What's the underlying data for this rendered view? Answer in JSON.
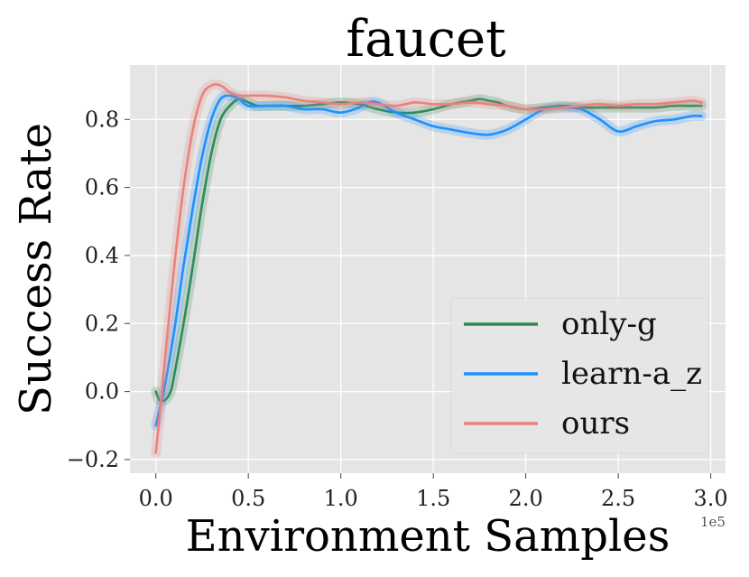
{
  "chart_data": {
    "type": "line",
    "title": "faucet",
    "xlabel": "Environment Samples",
    "ylabel": "Success Rate",
    "x_exponent_label": "1e5",
    "xlim": [
      -0.14,
      3.08
    ],
    "ylim": [
      -0.24,
      0.96
    ],
    "xticks": [
      0.0,
      0.5,
      1.0,
      1.5,
      2.0,
      2.5,
      3.0
    ],
    "xtick_labels": [
      "0.0",
      "0.5",
      "1.0",
      "1.5",
      "2.0",
      "2.5",
      "3.0"
    ],
    "yticks": [
      -0.2,
      0.0,
      0.2,
      0.4,
      0.6,
      0.8
    ],
    "ytick_labels": [
      "−0.2",
      "0.0",
      "0.2",
      "0.4",
      "0.6",
      "0.8"
    ],
    "grid": true,
    "legend_position": "lower-right",
    "series": [
      {
        "name": "only-g",
        "color": "#2e8b57",
        "x": [
          0.0,
          0.02,
          0.05,
          0.08,
          0.1,
          0.15,
          0.2,
          0.25,
          0.3,
          0.35,
          0.4,
          0.45,
          0.5,
          0.55,
          0.6,
          0.7,
          0.8,
          0.9,
          1.0,
          1.1,
          1.2,
          1.3,
          1.4,
          1.5,
          1.6,
          1.7,
          1.75,
          1.8,
          1.85,
          1.9,
          2.0,
          2.1,
          2.2,
          2.3,
          2.4,
          2.5,
          2.6,
          2.7,
          2.8,
          2.9,
          2.95
        ],
        "y": [
          0.0,
          -0.025,
          -0.025,
          0.0,
          0.05,
          0.2,
          0.37,
          0.55,
          0.7,
          0.8,
          0.84,
          0.86,
          0.85,
          0.84,
          0.84,
          0.84,
          0.84,
          0.845,
          0.85,
          0.845,
          0.83,
          0.82,
          0.82,
          0.83,
          0.845,
          0.855,
          0.86,
          0.855,
          0.85,
          0.84,
          0.83,
          0.835,
          0.84,
          0.835,
          0.835,
          0.835,
          0.835,
          0.835,
          0.84,
          0.84,
          0.84
        ]
      },
      {
        "name": "learn-a_z",
        "color": "#1e90ff",
        "x": [
          0.0,
          0.03,
          0.05,
          0.1,
          0.15,
          0.2,
          0.25,
          0.3,
          0.35,
          0.4,
          0.45,
          0.5,
          0.6,
          0.7,
          0.8,
          0.9,
          1.0,
          1.1,
          1.15,
          1.2,
          1.3,
          1.4,
          1.5,
          1.6,
          1.7,
          1.8,
          1.9,
          2.0,
          2.1,
          2.2,
          2.3,
          2.4,
          2.5,
          2.6,
          2.7,
          2.8,
          2.9,
          2.95
        ],
        "y": [
          -0.1,
          -0.03,
          0.02,
          0.18,
          0.37,
          0.54,
          0.69,
          0.8,
          0.86,
          0.87,
          0.86,
          0.84,
          0.84,
          0.84,
          0.83,
          0.83,
          0.82,
          0.835,
          0.85,
          0.85,
          0.82,
          0.8,
          0.78,
          0.77,
          0.76,
          0.755,
          0.77,
          0.8,
          0.83,
          0.835,
          0.83,
          0.8,
          0.765,
          0.78,
          0.795,
          0.8,
          0.81,
          0.81
        ]
      },
      {
        "name": "ours",
        "color": "#e9827d",
        "x": [
          0.0,
          0.03,
          0.05,
          0.1,
          0.15,
          0.2,
          0.25,
          0.3,
          0.35,
          0.4,
          0.45,
          0.5,
          0.6,
          0.7,
          0.8,
          0.9,
          1.0,
          1.1,
          1.2,
          1.3,
          1.4,
          1.5,
          1.6,
          1.7,
          1.8,
          1.9,
          2.0,
          2.1,
          2.2,
          2.3,
          2.4,
          2.5,
          2.6,
          2.7,
          2.8,
          2.9,
          2.95
        ],
        "y": [
          -0.18,
          -0.02,
          0.1,
          0.37,
          0.6,
          0.77,
          0.87,
          0.9,
          0.9,
          0.88,
          0.87,
          0.87,
          0.87,
          0.865,
          0.855,
          0.85,
          0.845,
          0.85,
          0.845,
          0.84,
          0.85,
          0.845,
          0.845,
          0.85,
          0.845,
          0.84,
          0.83,
          0.83,
          0.835,
          0.84,
          0.845,
          0.84,
          0.845,
          0.845,
          0.85,
          0.855,
          0.85
        ]
      }
    ]
  }
}
